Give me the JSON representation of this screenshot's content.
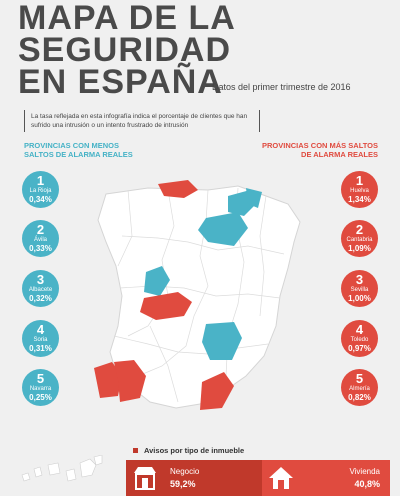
{
  "title": {
    "line1": "MAPA DE LA",
    "line2": "SEGURIDAD",
    "line3": "EN ESPAÑA"
  },
  "subtitle": "Datos del primer trimestre de 2016",
  "note": "La tasa reflejada en esta infografía indica el porcentaje de clientes que han sufrido una intrusión o un intento frustrado de intrusión",
  "left_heading": "PROVINCIAS CON MENOS SALTOS DE ALARMA REALES",
  "right_heading": "PROVINCIAS CON MÁS SALTOS DE ALARMA REALES",
  "lowest": [
    {
      "rank": "1",
      "name": "La Rioja",
      "pct": "0,34%"
    },
    {
      "rank": "2",
      "name": "Ávila",
      "pct": "0,33%"
    },
    {
      "rank": "3",
      "name": "Albacete",
      "pct": "0,32%"
    },
    {
      "rank": "4",
      "name": "Soria",
      "pct": "0,31%"
    },
    {
      "rank": "5",
      "name": "Navarra",
      "pct": "0,25%"
    }
  ],
  "highest": [
    {
      "rank": "1",
      "name": "Huelva",
      "pct": "1,34%"
    },
    {
      "rank": "2",
      "name": "Cantabria",
      "pct": "1,09%"
    },
    {
      "rank": "3",
      "name": "Sevilla",
      "pct": "1,00%"
    },
    {
      "rank": "4",
      "name": "Toledo",
      "pct": "0,97%"
    },
    {
      "rank": "5",
      "name": "Almería",
      "pct": "0,82%"
    }
  ],
  "bar_title": "Avisos por tipo de inmueble",
  "business": {
    "label": "Negocio",
    "value": "59,2%",
    "icon": "store-icon"
  },
  "home": {
    "label": "Vivienda",
    "value": "40,8%",
    "icon": "house-icon"
  },
  "colors": {
    "low": "#4ab3c7",
    "high": "#e04b3f",
    "dark_red": "#c0392b"
  }
}
